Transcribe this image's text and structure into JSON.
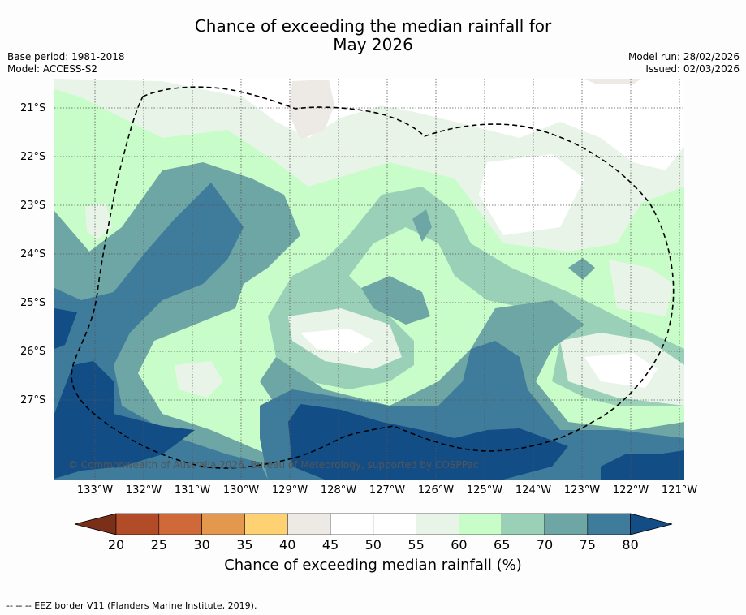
{
  "title_line1": "Chance of exceeding the median rainfall for",
  "title_line2": "May 2026",
  "base_period": "Base period: 1981-2018",
  "model": "Model: ACCESS-S2",
  "model_run": "Model run: 28/02/2026",
  "issued": "Issued: 02/03/2026",
  "copyright": "© Commonwealth of Australia 2026, Bureau of Meteorology, supported by COSPPac",
  "colorbar": {
    "label": "Chance of exceeding median rainfall (%)",
    "ticks": [
      "20",
      "25",
      "30",
      "35",
      "40",
      "45",
      "50",
      "55",
      "60",
      "65",
      "70",
      "75",
      "80"
    ],
    "colors": [
      "#7a2f18",
      "#b24b28",
      "#d0693a",
      "#e3984d",
      "#fed272",
      "#ede9e4",
      "#ffffff",
      "#ffffff",
      "#e9f4e9",
      "#c8fcc8",
      "#9bd0b8",
      "#6ea5a5",
      "#3f7b9a",
      "#124d86"
    ]
  },
  "lon_labels": [
    "133°W",
    "132°W",
    "131°W",
    "130°W",
    "129°W",
    "128°W",
    "127°W",
    "126°W",
    "125°W",
    "124°W",
    "123°W",
    "122°W",
    "121°W"
  ],
  "lat_labels": [
    "21°S",
    "22°S",
    "23°S",
    "24°S",
    "25°S",
    "26°S",
    "27°S"
  ],
  "footer": "-- -- -- EEZ border V11 (Flanders Marine Institute, 2019)."
}
